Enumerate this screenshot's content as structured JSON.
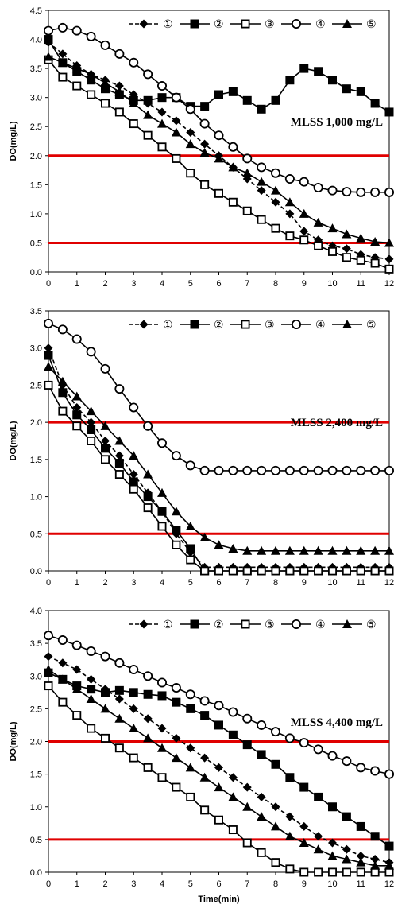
{
  "colors": {
    "series": "#000000",
    "threshold": "#e00000",
    "frame": "#000000"
  },
  "chart_data": [
    {
      "type": "line",
      "annotation": "MLSS 1,000 mg/L",
      "ylabel": "DO(mg/L)",
      "xlabel": "",
      "xlim": [
        0,
        12
      ],
      "ylim": [
        0,
        4.5
      ],
      "xticks": [
        "0",
        "1",
        "2",
        "3",
        "4",
        "5",
        "6",
        "7",
        "8",
        "9",
        "10",
        "11",
        "12"
      ],
      "yticks": [
        "0.0",
        "0.5",
        "1.0",
        "1.5",
        "2.0",
        "2.5",
        "3.0",
        "3.5",
        "4.0",
        "4.5"
      ],
      "thresholds": [
        2.0,
        0.5
      ],
      "grid": false,
      "legend_position": "top",
      "series": [
        {
          "name": "①",
          "marker": "diamond",
          "dashed": true,
          "x": [
            0,
            0.5,
            1,
            1.5,
            2,
            2.5,
            3,
            3.5,
            4,
            4.5,
            5,
            5.5,
            6,
            6.5,
            7,
            7.5,
            8,
            8.5,
            9,
            9.5,
            10,
            10.5,
            11,
            11.5,
            12
          ],
          "y": [
            3.95,
            3.75,
            3.55,
            3.4,
            3.3,
            3.2,
            3.05,
            2.9,
            2.75,
            2.6,
            2.4,
            2.2,
            2.0,
            1.8,
            1.6,
            1.4,
            1.2,
            1.0,
            0.7,
            0.55,
            0.45,
            0.4,
            0.3,
            0.25,
            0.22
          ]
        },
        {
          "name": "②",
          "marker": "square-filled",
          "dashed": false,
          "x": [
            0,
            0.5,
            1,
            1.5,
            2,
            2.5,
            3,
            3.5,
            4,
            4.5,
            5,
            5.5,
            6,
            6.5,
            7,
            7.5,
            8,
            8.5,
            9,
            9.5,
            10,
            10.5,
            11,
            11.5,
            12
          ],
          "y": [
            4.0,
            3.6,
            3.45,
            3.3,
            3.15,
            3.05,
            2.95,
            2.95,
            3.0,
            3.0,
            2.85,
            2.85,
            3.05,
            3.1,
            2.95,
            2.8,
            2.95,
            3.3,
            3.5,
            3.45,
            3.3,
            3.15,
            3.1,
            2.9,
            2.75
          ]
        },
        {
          "name": "③",
          "marker": "square-open",
          "dashed": false,
          "x": [
            0,
            0.5,
            1,
            1.5,
            2,
            2.5,
            3,
            3.5,
            4,
            4.5,
            5,
            5.5,
            6,
            6.5,
            7,
            7.5,
            8,
            8.5,
            9,
            9.5,
            10,
            10.5,
            11,
            11.5,
            12
          ],
          "y": [
            3.65,
            3.35,
            3.2,
            3.05,
            2.9,
            2.75,
            2.55,
            2.35,
            2.15,
            1.95,
            1.7,
            1.5,
            1.35,
            1.2,
            1.05,
            0.9,
            0.75,
            0.62,
            0.55,
            0.45,
            0.35,
            0.25,
            0.2,
            0.15,
            0.05
          ]
        },
        {
          "name": "④",
          "marker": "circle-open",
          "dashed": false,
          "x": [
            0,
            0.5,
            1,
            1.5,
            2,
            2.5,
            3,
            3.5,
            4,
            4.5,
            5,
            5.5,
            6,
            6.5,
            7,
            7.5,
            8,
            8.5,
            9,
            9.5,
            10,
            10.5,
            11,
            11.5,
            12
          ],
          "y": [
            4.15,
            4.2,
            4.15,
            4.05,
            3.9,
            3.75,
            3.6,
            3.4,
            3.2,
            3.0,
            2.8,
            2.55,
            2.35,
            2.15,
            1.95,
            1.8,
            1.7,
            1.6,
            1.55,
            1.45,
            1.4,
            1.38,
            1.37,
            1.37,
            1.37
          ]
        },
        {
          "name": "⑤",
          "marker": "triangle-filled",
          "dashed": false,
          "x": [
            0,
            0.5,
            1,
            1.5,
            2,
            2.5,
            3,
            3.5,
            4,
            4.5,
            5,
            5.5,
            6,
            6.5,
            7,
            7.5,
            8,
            8.5,
            9,
            9.5,
            10,
            10.5,
            11,
            11.5,
            12
          ],
          "y": [
            3.7,
            3.6,
            3.5,
            3.4,
            3.25,
            3.1,
            2.9,
            2.7,
            2.55,
            2.4,
            2.2,
            2.05,
            1.95,
            1.8,
            1.7,
            1.55,
            1.4,
            1.2,
            1.0,
            0.85,
            0.75,
            0.65,
            0.58,
            0.52,
            0.5
          ]
        }
      ]
    },
    {
      "type": "line",
      "annotation": "MLSS 2,400 mg/L",
      "ylabel": "DO(mg/L)",
      "xlabel": "",
      "xlim": [
        0,
        12
      ],
      "ylim": [
        0,
        3.5
      ],
      "xticks": [
        "0",
        "1",
        "2",
        "3",
        "4",
        "5",
        "6",
        "7",
        "8",
        "9",
        "10",
        "11",
        "12"
      ],
      "yticks": [
        "0.0",
        "0.5",
        "1.0",
        "1.5",
        "2.0",
        "2.5",
        "3.0",
        "3.5"
      ],
      "thresholds": [
        2.0,
        0.5
      ],
      "grid": false,
      "legend_position": "top",
      "series": [
        {
          "name": "①",
          "marker": "diamond",
          "dashed": true,
          "x": [
            0,
            0.5,
            1,
            1.5,
            2,
            2.5,
            3,
            3.5,
            4,
            4.5,
            5,
            5.5,
            6,
            6.5,
            7,
            7.5,
            8,
            8.5,
            9,
            9.5,
            10,
            10.5,
            11,
            11.5,
            12
          ],
          "y": [
            3.0,
            2.5,
            2.2,
            2.0,
            1.75,
            1.55,
            1.3,
            1.05,
            0.8,
            0.5,
            0.25,
            0.05,
            0.05,
            0.05,
            0.05,
            0.05,
            0.05,
            0.05,
            0.05,
            0.05,
            0.05,
            0.05,
            0.05,
            0.05,
            0.05
          ]
        },
        {
          "name": "②",
          "marker": "square-filled",
          "dashed": false,
          "x": [
            0,
            0.5,
            1,
            1.5,
            2,
            2.5,
            3,
            3.5,
            4,
            4.5,
            5,
            5.5,
            6,
            6.5,
            7,
            7.5,
            8,
            8.5,
            9,
            9.5,
            10,
            10.5,
            11,
            11.5,
            12
          ],
          "y": [
            2.9,
            2.4,
            2.1,
            1.9,
            1.65,
            1.45,
            1.2,
            1.0,
            0.8,
            0.55,
            0.3,
            0.0,
            0.0,
            0.0,
            0.0,
            0.0,
            0.0,
            0.0,
            0.0,
            0.0,
            0.0,
            0.0,
            0.0,
            0.0,
            0.0
          ]
        },
        {
          "name": "③",
          "marker": "square-open",
          "dashed": false,
          "x": [
            0,
            0.5,
            1,
            1.5,
            2,
            2.5,
            3,
            3.5,
            4,
            4.5,
            5,
            5.5,
            6,
            6.5,
            7,
            7.5,
            8,
            8.5,
            9,
            9.5,
            10,
            10.5,
            11,
            11.5,
            12
          ],
          "y": [
            2.5,
            2.15,
            1.95,
            1.75,
            1.5,
            1.3,
            1.1,
            0.85,
            0.6,
            0.35,
            0.15,
            0.0,
            0.0,
            0.0,
            0.0,
            0.0,
            0.0,
            0.0,
            0.0,
            0.0,
            0.0,
            0.0,
            0.0,
            0.0,
            0.0
          ]
        },
        {
          "name": "④",
          "marker": "circle-open",
          "dashed": false,
          "x": [
            0,
            0.5,
            1,
            1.5,
            2,
            2.5,
            3,
            3.5,
            4,
            4.5,
            5,
            5.5,
            6,
            6.5,
            7,
            7.5,
            8,
            8.5,
            9,
            9.5,
            10,
            10.5,
            11,
            11.5,
            12
          ],
          "y": [
            3.33,
            3.25,
            3.12,
            2.95,
            2.72,
            2.45,
            2.2,
            1.95,
            1.72,
            1.55,
            1.42,
            1.35,
            1.35,
            1.35,
            1.35,
            1.35,
            1.35,
            1.35,
            1.35,
            1.35,
            1.35,
            1.35,
            1.35,
            1.35,
            1.35
          ]
        },
        {
          "name": "⑤",
          "marker": "triangle-filled",
          "dashed": false,
          "x": [
            0,
            0.5,
            1,
            1.5,
            2,
            2.5,
            3,
            3.5,
            4,
            4.5,
            5,
            5.5,
            6,
            6.5,
            7,
            7.5,
            8,
            8.5,
            9,
            9.5,
            10,
            10.5,
            11,
            11.5,
            12
          ],
          "y": [
            2.75,
            2.55,
            2.35,
            2.15,
            1.95,
            1.75,
            1.55,
            1.3,
            1.05,
            0.8,
            0.6,
            0.45,
            0.35,
            0.3,
            0.27,
            0.27,
            0.27,
            0.27,
            0.27,
            0.27,
            0.27,
            0.27,
            0.27,
            0.27,
            0.27
          ]
        }
      ]
    },
    {
      "type": "line",
      "annotation": "MLSS 4,400 mg/L",
      "ylabel": "DO(mg/L)",
      "xlabel": "Time(min)",
      "xlim": [
        0,
        12
      ],
      "ylim": [
        0,
        4.0
      ],
      "xticks": [
        "0",
        "1",
        "2",
        "3",
        "4",
        "5",
        "6",
        "7",
        "8",
        "9",
        "10",
        "11",
        "12"
      ],
      "yticks": [
        "0.0",
        "0.5",
        "1.0",
        "1.5",
        "2.0",
        "2.5",
        "3.0",
        "3.5",
        "4.0"
      ],
      "thresholds": [
        2.0,
        0.5
      ],
      "grid": false,
      "legend_position": "top",
      "series": [
        {
          "name": "①",
          "marker": "diamond",
          "dashed": true,
          "x": [
            0,
            0.5,
            1,
            1.5,
            2,
            2.5,
            3,
            3.5,
            4,
            4.5,
            5,
            5.5,
            6,
            6.5,
            7,
            7.5,
            8,
            8.5,
            9,
            9.5,
            10,
            10.5,
            11,
            11.5,
            12
          ],
          "y": [
            3.3,
            3.2,
            3.1,
            2.95,
            2.8,
            2.65,
            2.5,
            2.35,
            2.2,
            2.05,
            1.9,
            1.75,
            1.6,
            1.45,
            1.3,
            1.15,
            1.0,
            0.85,
            0.7,
            0.55,
            0.45,
            0.35,
            0.25,
            0.2,
            0.15
          ]
        },
        {
          "name": "②",
          "marker": "square-filled",
          "dashed": false,
          "x": [
            0,
            0.5,
            1,
            1.5,
            2,
            2.5,
            3,
            3.5,
            4,
            4.5,
            5,
            5.5,
            6,
            6.5,
            7,
            7.5,
            8,
            8.5,
            9,
            9.5,
            10,
            10.5,
            11,
            11.5,
            12
          ],
          "y": [
            3.05,
            2.95,
            2.85,
            2.8,
            2.75,
            2.78,
            2.75,
            2.72,
            2.7,
            2.6,
            2.5,
            2.4,
            2.25,
            2.1,
            1.95,
            1.8,
            1.65,
            1.45,
            1.3,
            1.15,
            1.0,
            0.85,
            0.7,
            0.55,
            0.4
          ]
        },
        {
          "name": "③",
          "marker": "square-open",
          "dashed": false,
          "x": [
            0,
            0.5,
            1,
            1.5,
            2,
            2.5,
            3,
            3.5,
            4,
            4.5,
            5,
            5.5,
            6,
            6.5,
            7,
            7.5,
            8,
            8.5,
            9,
            9.5,
            10,
            10.5,
            11,
            11.5,
            12
          ],
          "y": [
            2.85,
            2.6,
            2.4,
            2.2,
            2.05,
            1.9,
            1.75,
            1.6,
            1.45,
            1.3,
            1.15,
            0.95,
            0.8,
            0.65,
            0.45,
            0.3,
            0.15,
            0.05,
            0.0,
            0.0,
            0.0,
            0.0,
            0.0,
            0.0,
            0.0
          ]
        },
        {
          "name": "④",
          "marker": "circle-open",
          "dashed": false,
          "x": [
            0,
            0.5,
            1,
            1.5,
            2,
            2.5,
            3,
            3.5,
            4,
            4.5,
            5,
            5.5,
            6,
            6.5,
            7,
            7.5,
            8,
            8.5,
            9,
            9.5,
            10,
            10.5,
            11,
            11.5,
            12
          ],
          "y": [
            3.62,
            3.55,
            3.47,
            3.38,
            3.3,
            3.2,
            3.1,
            3.0,
            2.9,
            2.82,
            2.72,
            2.62,
            2.55,
            2.45,
            2.35,
            2.25,
            2.15,
            2.05,
            1.98,
            1.88,
            1.78,
            1.7,
            1.6,
            1.55,
            1.5
          ]
        },
        {
          "name": "⑤",
          "marker": "triangle-filled",
          "dashed": false,
          "x": [
            0,
            0.5,
            1,
            1.5,
            2,
            2.5,
            3,
            3.5,
            4,
            4.5,
            5,
            5.5,
            6,
            6.5,
            7,
            7.5,
            8,
            8.5,
            9,
            9.5,
            10,
            10.5,
            11,
            11.5,
            12
          ],
          "y": [
            3.1,
            2.95,
            2.8,
            2.65,
            2.5,
            2.35,
            2.2,
            2.05,
            1.9,
            1.75,
            1.6,
            1.45,
            1.3,
            1.15,
            1.0,
            0.85,
            0.7,
            0.55,
            0.45,
            0.35,
            0.25,
            0.2,
            0.15,
            0.1,
            0.1
          ]
        }
      ]
    }
  ]
}
